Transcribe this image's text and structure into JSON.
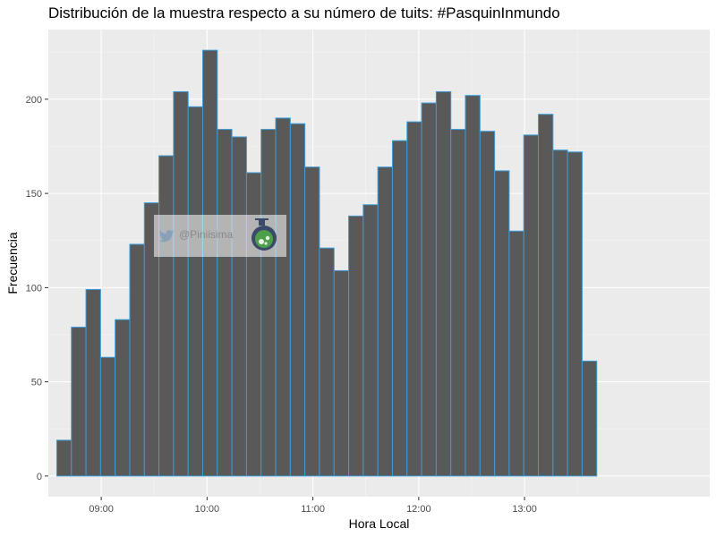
{
  "chart_data": {
    "type": "bar",
    "title": "Distribución de la muestra respecto a su número de tuits: #PasquinInmundo",
    "xlabel": "Hora Local",
    "ylabel": "Frecuencia",
    "x_tick_labels": [
      "09:00",
      "10:00",
      "11:00",
      "12:00",
      "13:00"
    ],
    "x_tick_values": [
      9,
      10,
      11,
      12,
      13
    ],
    "y_tick_labels": [
      "0",
      "50",
      "100",
      "150",
      "200"
    ],
    "y_tick_values": [
      0,
      50,
      100,
      150,
      200
    ],
    "xlim": [
      8.5,
      14.75
    ],
    "ylim": [
      -11,
      237
    ],
    "bin_start": 8.58,
    "bin_width": 0.1379,
    "values": [
      19,
      79,
      99,
      63,
      83,
      123,
      145,
      170,
      204,
      196,
      226,
      184,
      180,
      161,
      184,
      190,
      187,
      164,
      121,
      109,
      138,
      144,
      164,
      178,
      188,
      198,
      204,
      184,
      202,
      183,
      162,
      130,
      181,
      192,
      173,
      172,
      61
    ],
    "grid": true,
    "legend": "none",
    "colors": {
      "panel": "#ebebeb",
      "grid_major": "#ffffff",
      "grid_minor": "#f5f5f5",
      "bar_fill": "#595959",
      "bar_stroke": "#3a9bd9"
    }
  },
  "watermark": {
    "handle": "@Piniisima",
    "icons": [
      "twitter-bird-icon",
      "flask-icon"
    ]
  }
}
